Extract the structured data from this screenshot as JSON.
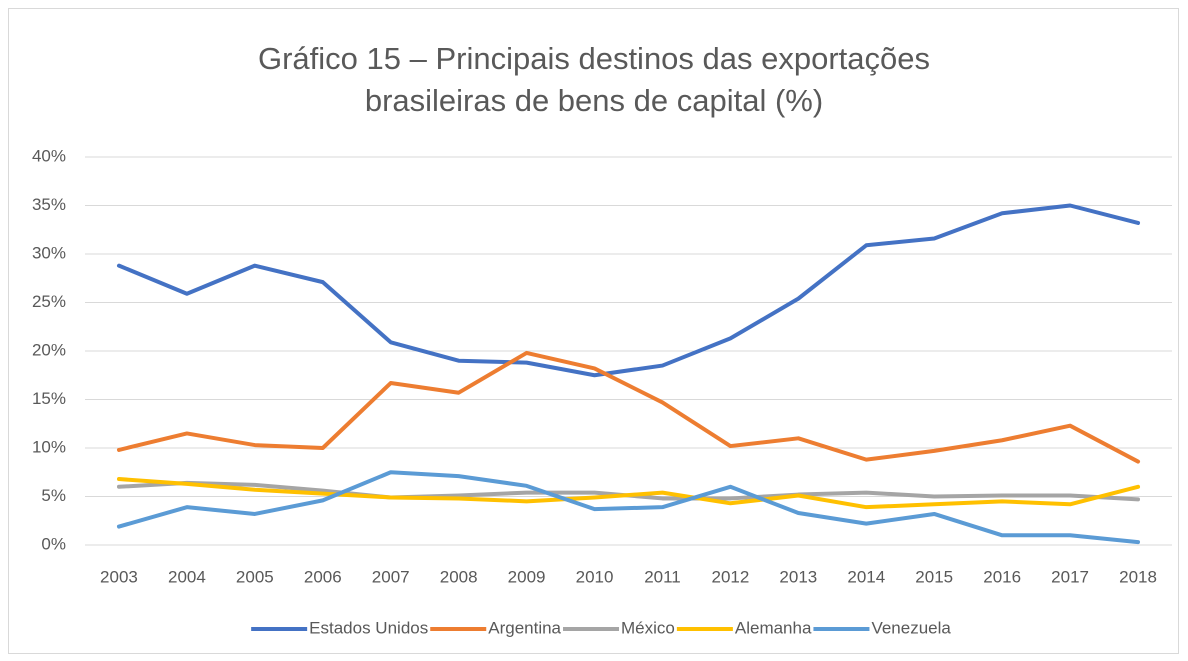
{
  "chart_data": {
    "type": "line",
    "title": "Gráfico 15 – Principais destinos das exportações brasileiras de bens de capital (%)",
    "categories": [
      "2003",
      "2004",
      "2005",
      "2006",
      "2007",
      "2008",
      "2009",
      "2010",
      "2011",
      "2012",
      "2013",
      "2014",
      "2015",
      "2016",
      "2017",
      "2018"
    ],
    "series": [
      {
        "name": "Estados Unidos",
        "color": "#4472c4",
        "values": [
          28.8,
          25.9,
          28.8,
          27.1,
          20.9,
          19.0,
          18.8,
          17.5,
          18.5,
          21.3,
          25.4,
          30.9,
          31.6,
          34.2,
          35.0,
          33.2
        ]
      },
      {
        "name": "Argentina",
        "color": "#ed7d31",
        "values": [
          9.8,
          11.5,
          10.3,
          10.0,
          16.7,
          15.7,
          19.8,
          18.2,
          14.7,
          10.2,
          11.0,
          8.8,
          9.7,
          10.8,
          12.3,
          8.6
        ]
      },
      {
        "name": "México",
        "color": "#a5a5a5",
        "values": [
          6.0,
          6.4,
          6.2,
          5.6,
          4.9,
          5.1,
          5.4,
          5.4,
          4.8,
          4.8,
          5.2,
          5.4,
          5.0,
          5.1,
          5.1,
          4.7
        ]
      },
      {
        "name": "Alemanha",
        "color": "#ffc000",
        "values": [
          6.8,
          6.3,
          5.7,
          5.3,
          4.9,
          4.8,
          4.5,
          4.9,
          5.4,
          4.3,
          5.1,
          3.9,
          4.2,
          4.5,
          4.2,
          6.0
        ]
      },
      {
        "name": "Venezuela",
        "color": "#5b9bd5",
        "values": [
          1.9,
          3.9,
          3.2,
          4.6,
          7.5,
          7.1,
          6.1,
          3.7,
          3.9,
          6.0,
          3.3,
          2.2,
          3.2,
          1.0,
          1.0,
          0.3
        ]
      }
    ],
    "ylim": [
      0,
      40
    ],
    "yticks": [
      {
        "value": 0,
        "label": "0%"
      },
      {
        "value": 5,
        "label": "5%"
      },
      {
        "value": 10,
        "label": "10%"
      },
      {
        "value": 15,
        "label": "15%"
      },
      {
        "value": 20,
        "label": "20%"
      },
      {
        "value": 25,
        "label": "25%"
      },
      {
        "value": 30,
        "label": "30%"
      },
      {
        "value": 35,
        "label": "35%"
      },
      {
        "value": 40,
        "label": "40%"
      }
    ],
    "grid": true,
    "legend": "bottom"
  }
}
